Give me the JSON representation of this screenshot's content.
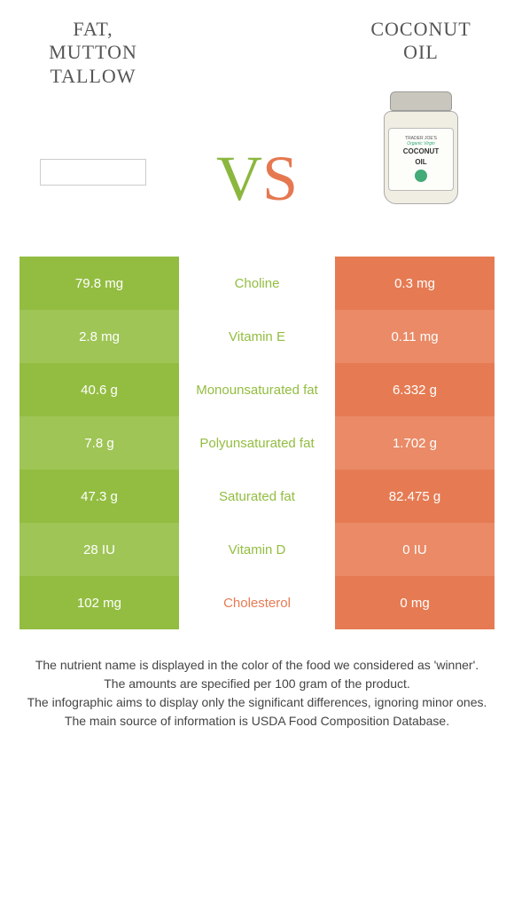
{
  "left_product": {
    "line1": "Fat,",
    "line2": "mutton",
    "line3": "tallow"
  },
  "right_product": {
    "line1": "Coconut",
    "line2": "oil"
  },
  "vs": {
    "v": "V",
    "s": "S"
  },
  "jar": {
    "brand": "TRADER JOE'S",
    "organic": "Organic Virgin",
    "main1": "COCONUT",
    "main2": "OIL"
  },
  "colors": {
    "green": "#93bd41",
    "green_alt": "#9fc556",
    "orange": "#e67b53",
    "orange_alt": "#ea8a66"
  },
  "rows": [
    {
      "left": "79.8 mg",
      "mid": "Choline",
      "right": "0.3 mg",
      "winner": "left",
      "alt": false
    },
    {
      "left": "2.8 mg",
      "mid": "Vitamin E",
      "right": "0.11 mg",
      "winner": "left",
      "alt": true
    },
    {
      "left": "40.6 g",
      "mid": "Monounsaturated fat",
      "right": "6.332 g",
      "winner": "left",
      "alt": false
    },
    {
      "left": "7.8 g",
      "mid": "Polyunsaturated fat",
      "right": "1.702 g",
      "winner": "left",
      "alt": true
    },
    {
      "left": "47.3 g",
      "mid": "Saturated fat",
      "right": "82.475 g",
      "winner": "left",
      "alt": false
    },
    {
      "left": "28 IU",
      "mid": "Vitamin D",
      "right": "0 IU",
      "winner": "left",
      "alt": true
    },
    {
      "left": "102 mg",
      "mid": "Cholesterol",
      "right": "0 mg",
      "winner": "right",
      "alt": false
    }
  ],
  "footer": {
    "l1": "The nutrient name is displayed in the color of the food we considered as 'winner'.",
    "l2": "The amounts are specified per 100 gram of the product.",
    "l3": "The infographic aims to display only the significant differences, ignoring minor ones.",
    "l4": "The main source of information is USDA Food Composition Database."
  }
}
